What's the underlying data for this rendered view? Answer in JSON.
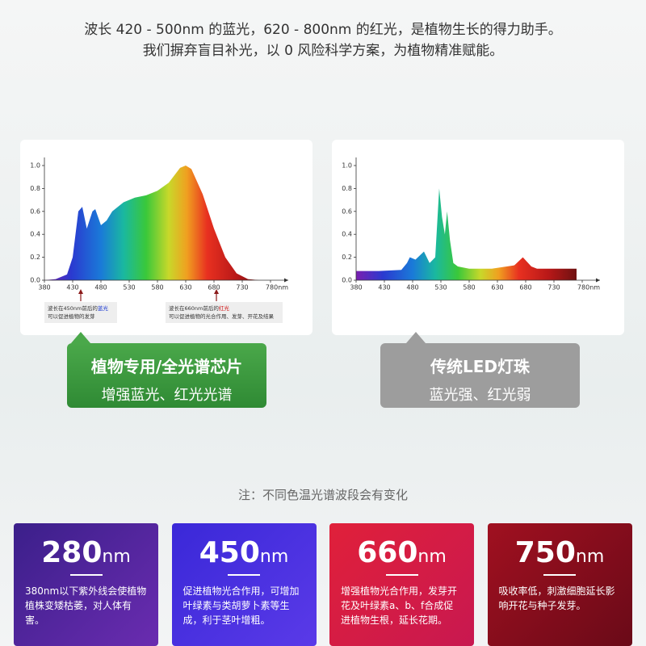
{
  "header": {
    "line1": "波长 420 - 500nm 的蓝光，620 - 800nm 的红光，是植物生长的得力助手。",
    "line2": "我们摒弃盲目补光，以 0 风险科学方案，为植物精准赋能。"
  },
  "chart_data": [
    {
      "type": "area",
      "x": [
        380,
        400,
        420,
        430,
        440,
        447,
        455,
        465,
        470,
        480,
        490,
        500,
        520,
        540,
        560,
        580,
        600,
        620,
        630,
        640,
        660,
        680,
        700,
        720,
        740,
        760,
        780
      ],
      "values": [
        0,
        0.01,
        0.05,
        0.2,
        0.6,
        0.64,
        0.45,
        0.6,
        0.62,
        0.48,
        0.52,
        0.6,
        0.68,
        0.72,
        0.74,
        0.78,
        0.85,
        0.98,
        1.0,
        0.97,
        0.75,
        0.45,
        0.2,
        0.06,
        0.01,
        0,
        0
      ],
      "xlim": [
        380,
        780
      ],
      "xticks": [
        380,
        430,
        480,
        530,
        580,
        630,
        680,
        730,
        {
          "value": 780,
          "label": "780nm"
        }
      ],
      "ylim": [
        0,
        1
      ],
      "yticks": [
        {
          "value": 0,
          "label": "0.0"
        },
        {
          "value": 0.2,
          "label": "0.2"
        },
        {
          "value": 0.4,
          "label": "0.4"
        },
        {
          "value": 0.6,
          "label": "0.6"
        },
        {
          "value": 0.8,
          "label": "0.8"
        },
        {
          "value": 1,
          "label": "1.0"
        }
      ],
      "annotations": [
        [
          "波长在450nm前后的",
          "蓝光",
          "可以促进植物的发芽"
        ],
        [
          "波长在660nm前后的",
          "红光",
          "可以促进植物的光合作用、发芽、开花及结果"
        ]
      ]
    },
    {
      "type": "area",
      "x": [
        380,
        420,
        460,
        470,
        475,
        485,
        500,
        510,
        520,
        527,
        532,
        537,
        541,
        546,
        552,
        560,
        580,
        620,
        660,
        675,
        690,
        700,
        730,
        770
      ],
      "values": [
        0.08,
        0.08,
        0.09,
        0.15,
        0.2,
        0.18,
        0.25,
        0.15,
        0.2,
        0.8,
        0.55,
        0.4,
        0.6,
        0.35,
        0.15,
        0.12,
        0.1,
        0.1,
        0.13,
        0.2,
        0.12,
        0.1,
        0.1,
        0.1
      ],
      "xlim": [
        380,
        780
      ],
      "xticks": [
        380,
        430,
        480,
        530,
        580,
        630,
        680,
        730,
        {
          "value": 780,
          "label": "780nm"
        }
      ],
      "ylim": [
        0,
        1
      ],
      "yticks": [
        {
          "value": 0,
          "label": "0.0"
        },
        {
          "value": 0.2,
          "label": "0.2"
        },
        {
          "value": 0.4,
          "label": "0.4"
        },
        {
          "value": 0.6,
          "label": "0.6"
        },
        {
          "value": 0.8,
          "label": "0.8"
        },
        {
          "value": 1,
          "label": "1.0"
        }
      ]
    }
  ],
  "badges": [
    {
      "title": "植物专用/全光谱芯片",
      "subtitle": "增强蓝光、红光光谱"
    },
    {
      "title": "传统LED灯珠",
      "subtitle": "蓝光强、红光弱"
    }
  ],
  "note": "注：不同色温光谱波段会有变化",
  "cards": [
    {
      "value": 280,
      "unit": "nm",
      "text": "380nm以下紫外线会使植物植株变矮枯萎，对人体有害。"
    },
    {
      "value": 450,
      "unit": "nm",
      "text": "促进植物光合作用，可增加叶绿素与类胡萝卜素等生成，利于茎叶增粗。"
    },
    {
      "value": 660,
      "unit": "nm",
      "text": "增强植物光合作用，发芽开花及叶绿素a、b、f合成促进植物生根，延长花期。"
    },
    {
      "value": 750,
      "unit": "nm",
      "text": "吸收率低，刺激细胞延长影响开花与种子发芽。"
    }
  ]
}
